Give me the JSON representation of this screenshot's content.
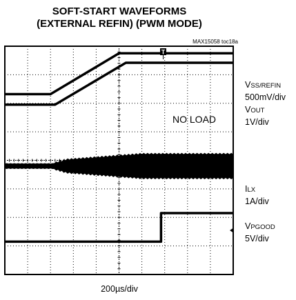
{
  "title_line1": "SOFT-START WAVEFORMS",
  "title_line2": "(EXTERNAL REFIN) (PWM MODE)",
  "figure_tag": "MAX15058 toc18a",
  "annotation": "NO LOAD",
  "trigger_marker": "T",
  "xscale_label": "200µs/div",
  "channels": [
    {
      "prefix": "V",
      "sub": "SS/REFIN",
      "scale": "500mV/div"
    },
    {
      "prefix": "V",
      "sub": "OUT",
      "scale": "1V/div"
    },
    {
      "prefix": "I",
      "sub": "LX",
      "scale": "1A/div"
    },
    {
      "prefix": "V",
      "sub": "PGOOD",
      "scale": "5V/div"
    }
  ],
  "chart_data": {
    "type": "line",
    "title": "SOFT-START WAVEFORMS (EXTERNAL REFIN) (PWM MODE)",
    "xlabel": "200µs/div",
    "x_divisions": 10,
    "y_divisions": 8,
    "grid": true,
    "x_unit": "div",
    "series": [
      {
        "name": "VSS/REFIN",
        "scale": "500mV/div",
        "x": [
          0,
          2,
          5,
          6,
          10
        ],
        "y": [
          6.32,
          6.32,
          7.75,
          7.75,
          7.75
        ]
      },
      {
        "name": "VOUT",
        "scale": "1V/div",
        "x": [
          0,
          2.2,
          5.3,
          6,
          10
        ],
        "y": [
          5.95,
          5.95,
          7.42,
          7.42,
          7.42
        ]
      },
      {
        "name": "ILX",
        "scale": "1A/div",
        "x": [
          0,
          2.1,
          2.7,
          6,
          10
        ],
        "y": [
          3.8,
          3.8,
          3.8,
          3.8,
          3.8
        ],
        "envelope_halfwidth": [
          0.08,
          0.08,
          0.22,
          0.42,
          0.42
        ]
      },
      {
        "name": "VPGOOD",
        "scale": "5V/div",
        "x": [
          0,
          6.84,
          6.84,
          10
        ],
        "y": [
          1.15,
          1.15,
          2.15,
          2.15
        ]
      }
    ]
  }
}
